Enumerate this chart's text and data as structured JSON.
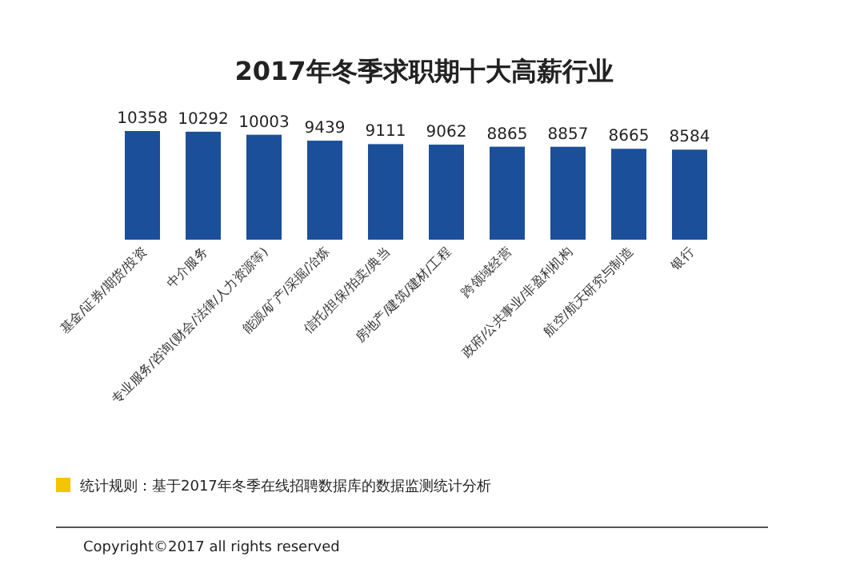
{
  "chart_data": {
    "type": "bar",
    "title": "2017年冬季求职期十大高薪行业",
    "categories": [
      "基金/证券/期货/投资",
      "中介服务",
      "专业服务/咨询(财会/法律/人力资源等)",
      "能源/矿产/采掘/冶炼",
      "信托/担保/拍卖/典当",
      "房地产/建筑/建材/工程",
      "跨领域经营",
      "政府/公共事业/非盈利机构",
      "航空/航天研究与制造",
      "银行"
    ],
    "values": [
      10358,
      10292,
      10003,
      9439,
      9111,
      9062,
      8865,
      8857,
      8665,
      8584
    ],
    "color": "#1c4f9a",
    "data_labels": true,
    "annotations": [
      "统计规则：基于2017年冬季在线招聘数据库的数据监测统计分析",
      "Copyright©2017 all rights reserved"
    ]
  }
}
